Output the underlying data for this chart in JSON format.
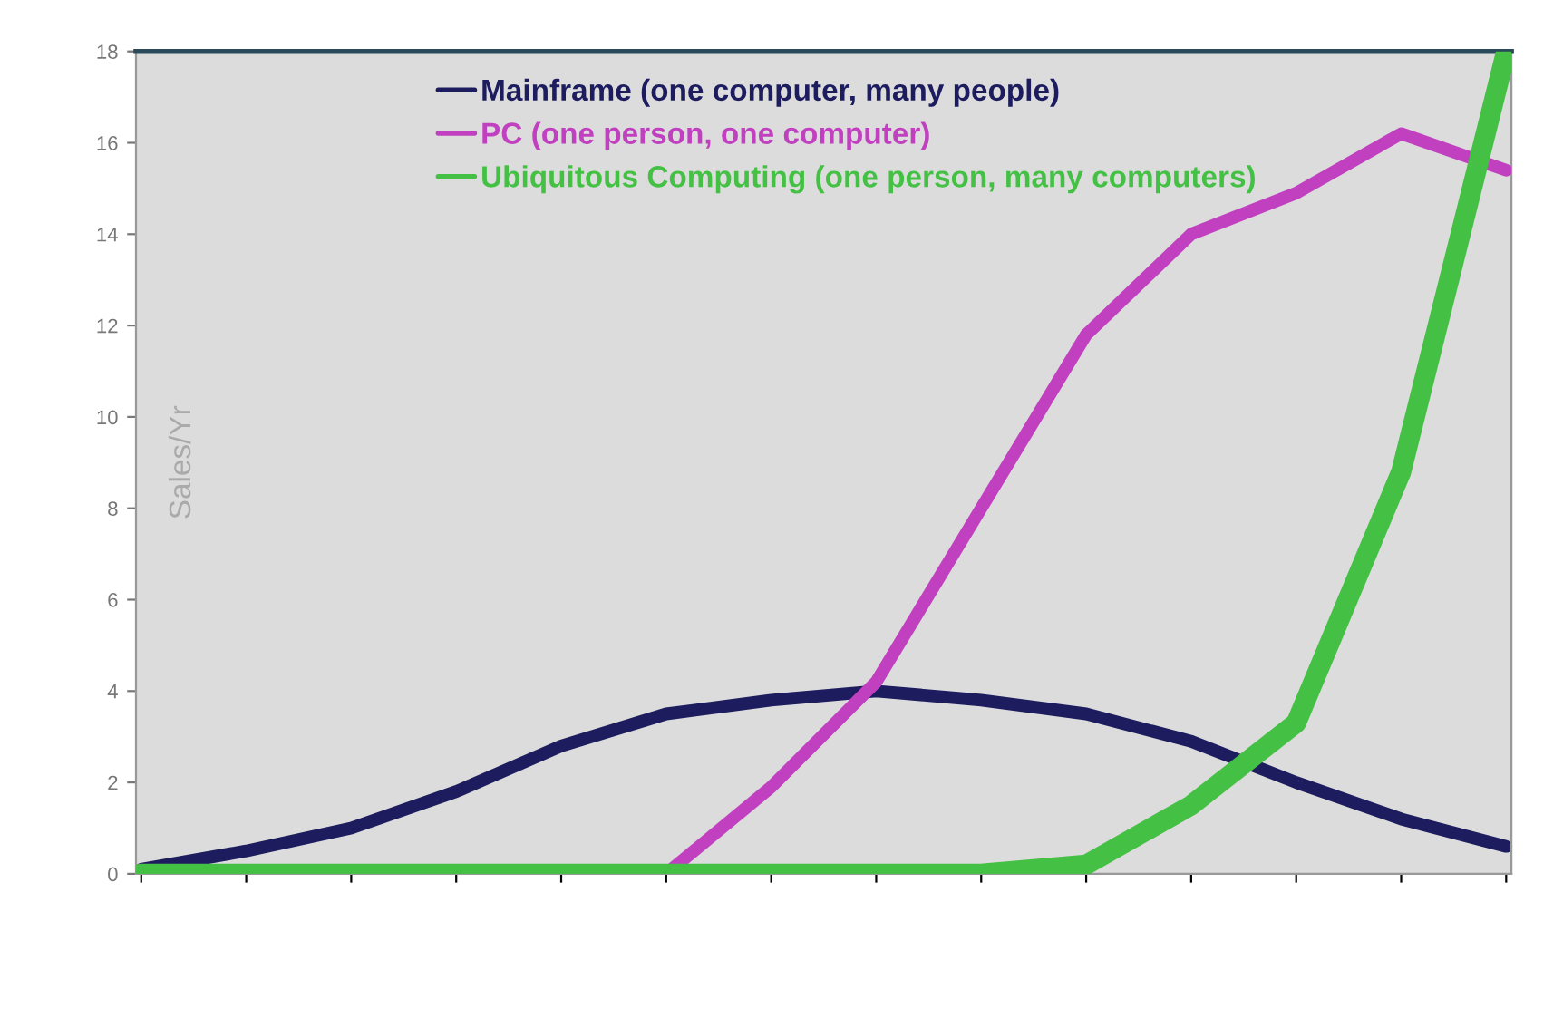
{
  "chart_data": {
    "type": "line",
    "ylabel": "Sales/Yr",
    "categories": [
      null,
      null,
      null,
      null,
      null,
      null,
      null,
      null,
      null,
      null,
      null,
      null,
      null,
      null
    ],
    "series": [
      {
        "name": "Mainframe (one computer, many people)",
        "color": "#1c1c5e",
        "values": [
          0.1,
          0.5,
          1.0,
          1.8,
          2.8,
          3.5,
          3.8,
          4.0,
          3.8,
          3.5,
          2.9,
          2.0,
          1.2,
          0.6
        ]
      },
      {
        "name": "PC (one person, one computer)",
        "color": "#c040c0",
        "values": [
          null,
          null,
          null,
          null,
          null,
          0,
          1.9,
          4.2,
          8.0,
          11.8,
          14.0,
          14.9,
          16.2,
          15.4
        ]
      },
      {
        "name": "Ubiquitous Computing (one person, many computers)",
        "color": "#44c044",
        "values": [
          0,
          0,
          0,
          0,
          0,
          0,
          0,
          0,
          0,
          0.2,
          1.5,
          3.3,
          8.8,
          18
        ]
      }
    ],
    "ylim": [
      0,
      18
    ],
    "yticks": [
      0,
      2,
      4,
      6,
      8,
      10,
      12,
      14,
      16,
      18
    ],
    "tick_labels": "y",
    "grid": false,
    "legend": "top left",
    "marker": "none",
    "line_style": "solid"
  }
}
